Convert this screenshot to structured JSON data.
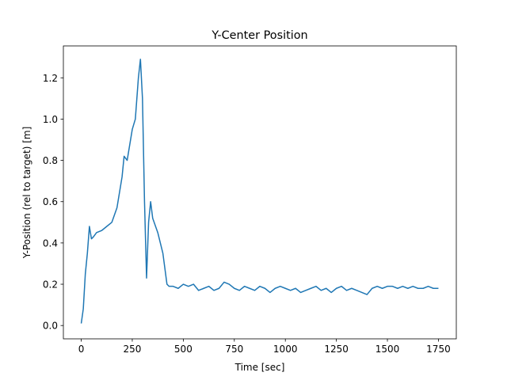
{
  "chart_data": {
    "type": "line",
    "title": "Y-Center Position",
    "x_label": "Time [sec]",
    "y_label": "Y-Position (rel to target) [m]",
    "x": [
      0,
      10,
      20,
      30,
      40,
      50,
      60,
      75,
      100,
      125,
      150,
      175,
      200,
      210,
      225,
      250,
      265,
      280,
      290,
      300,
      310,
      320,
      330,
      340,
      350,
      375,
      400,
      420,
      430,
      450,
      475,
      500,
      525,
      550,
      575,
      600,
      625,
      650,
      675,
      700,
      725,
      750,
      775,
      800,
      825,
      850,
      875,
      900,
      925,
      950,
      975,
      1000,
      1025,
      1050,
      1075,
      1100,
      1125,
      1150,
      1175,
      1200,
      1225,
      1250,
      1275,
      1300,
      1325,
      1350,
      1375,
      1400,
      1425,
      1450,
      1475,
      1500,
      1525,
      1550,
      1575,
      1600,
      1625,
      1650,
      1675,
      1700,
      1725,
      1750
    ],
    "series": [
      {
        "color": "#1f77b4",
        "values": [
          0.01,
          0.08,
          0.25,
          0.35,
          0.48,
          0.42,
          0.43,
          0.45,
          0.46,
          0.48,
          0.5,
          0.57,
          0.72,
          0.82,
          0.8,
          0.95,
          1.0,
          1.2,
          1.29,
          1.1,
          0.6,
          0.23,
          0.5,
          0.6,
          0.52,
          0.45,
          0.35,
          0.2,
          0.19,
          0.19,
          0.18,
          0.2,
          0.19,
          0.2,
          0.17,
          0.18,
          0.19,
          0.17,
          0.18,
          0.21,
          0.2,
          0.18,
          0.17,
          0.19,
          0.18,
          0.17,
          0.19,
          0.18,
          0.16,
          0.18,
          0.19,
          0.18,
          0.17,
          0.18,
          0.16,
          0.17,
          0.18,
          0.19,
          0.17,
          0.18,
          0.16,
          0.18,
          0.19,
          0.17,
          0.18,
          0.17,
          0.16,
          0.15,
          0.18,
          0.19,
          0.18,
          0.19,
          0.19,
          0.18,
          0.19,
          0.18,
          0.19,
          0.18,
          0.18,
          0.19,
          0.18,
          0.18
        ]
      }
    ],
    "xlim": [
      -87.5,
      1837.5
    ],
    "ylim": [
      -0.0645,
      1.3545
    ],
    "xticks": [
      0,
      250,
      500,
      750,
      1000,
      1250,
      1500,
      1750
    ],
    "yticks": [
      {
        "value": 0,
        "label": "0.0"
      },
      0.2,
      0.4,
      0.6,
      0.8,
      {
        "value": 1,
        "label": "1.0"
      },
      1.2
    ]
  }
}
